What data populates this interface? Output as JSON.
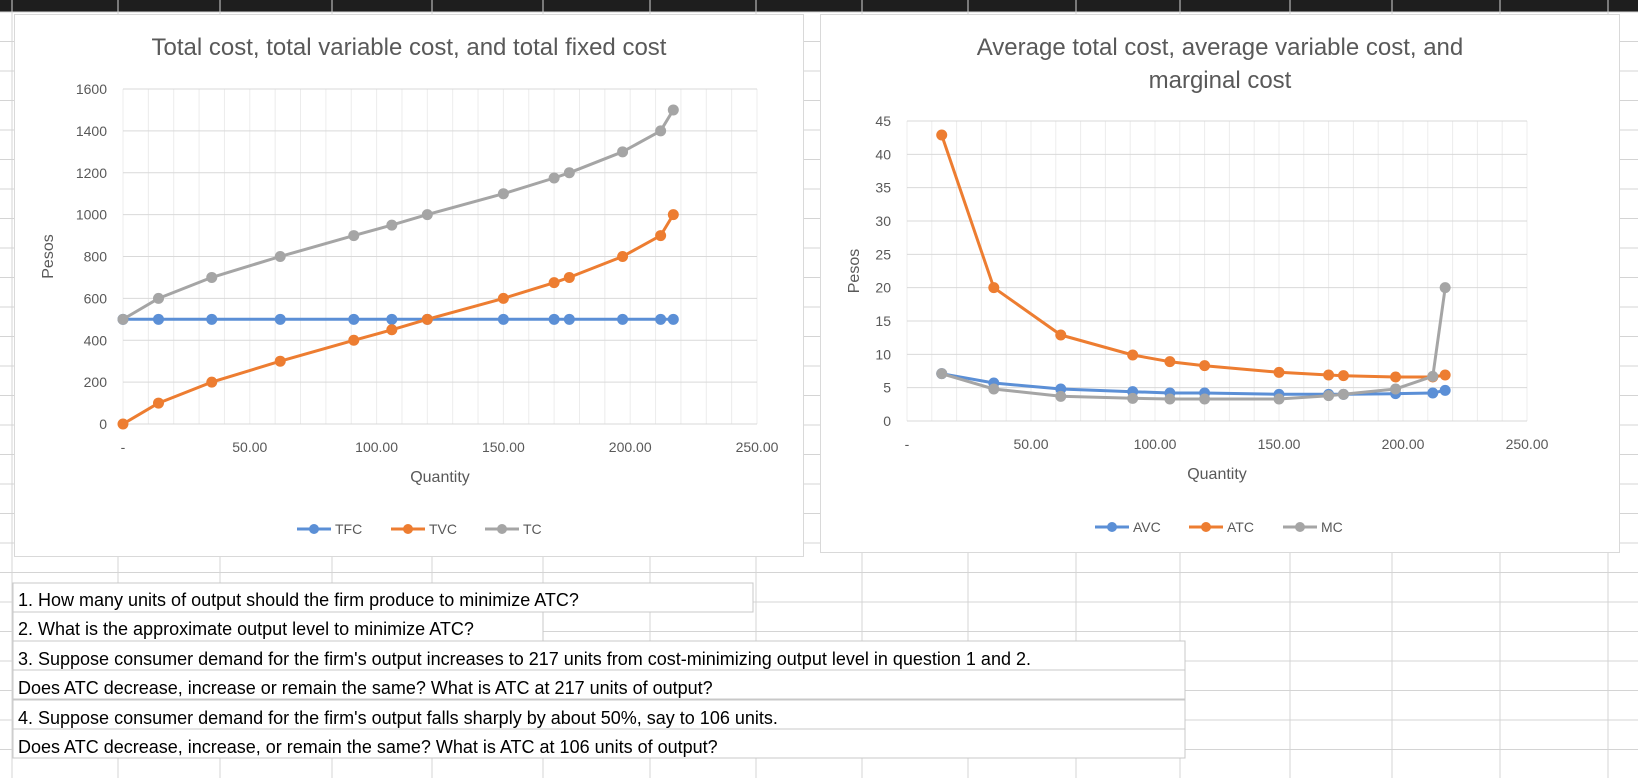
{
  "colors": {
    "sheet_grid": "#d4d4d4",
    "sheet_header": "#1e1e1e",
    "plot_grid": "#d9d9d9",
    "axis_text": "#595959",
    "series_blue": "#5b8fd6",
    "series_orange": "#ed7d31",
    "series_gray": "#a5a5a5"
  },
  "chart_data": [
    {
      "type": "line",
      "title": "Total cost, total variable cost, and total fixed cost",
      "xlabel": "Quantity",
      "ylabel": "Pesos",
      "xlim": [
        0,
        250
      ],
      "ylim": [
        0,
        1600
      ],
      "x_ticks": [
        "-",
        "50.00",
        "100.00",
        "150.00",
        "200.00",
        "250.00"
      ],
      "y_ticks": [
        "0",
        "200",
        "400",
        "600",
        "800",
        "1000",
        "1200",
        "1400",
        "1600"
      ],
      "grid": true,
      "legend": "bottom",
      "series": [
        {
          "name": "TFC",
          "color": "#5b8fd6",
          "points": [
            [
              0,
              500
            ],
            [
              14,
              500
            ],
            [
              35,
              500
            ],
            [
              62,
              500
            ],
            [
              91,
              500
            ],
            [
              106,
              500
            ],
            [
              120,
              500
            ],
            [
              150,
              500
            ],
            [
              170,
              500
            ],
            [
              176,
              500
            ],
            [
              197,
              500
            ],
            [
              212,
              500
            ],
            [
              217,
              500
            ]
          ]
        },
        {
          "name": "TVC",
          "color": "#ed7d31",
          "points": [
            [
              0,
              0
            ],
            [
              14,
              100
            ],
            [
              35,
              200
            ],
            [
              62,
              300
            ],
            [
              91,
              400
            ],
            [
              106,
              450
            ],
            [
              120,
              500
            ],
            [
              150,
              600
            ],
            [
              170,
              675
            ],
            [
              176,
              700
            ],
            [
              197,
              800
            ],
            [
              212,
              900
            ],
            [
              217,
              1000
            ]
          ]
        },
        {
          "name": "TC",
          "color": "#a5a5a5",
          "points": [
            [
              0,
              500
            ],
            [
              14,
              600
            ],
            [
              35,
              700
            ],
            [
              62,
              800
            ],
            [
              91,
              900
            ],
            [
              106,
              950
            ],
            [
              120,
              1000
            ],
            [
              150,
              1100
            ],
            [
              170,
              1175
            ],
            [
              176,
              1200
            ],
            [
              197,
              1300
            ],
            [
              212,
              1400
            ],
            [
              217,
              1500
            ]
          ]
        }
      ]
    },
    {
      "type": "line",
      "title": "Average total cost, average variable cost, and marginal cost",
      "xlabel": "Quantity",
      "ylabel": "Pesos",
      "xlim": [
        0,
        250
      ],
      "ylim": [
        0,
        45
      ],
      "x_ticks": [
        "-",
        "50.00",
        "100.00",
        "150.00",
        "200.00",
        "250.00"
      ],
      "y_ticks": [
        "0",
        "5",
        "10",
        "15",
        "20",
        "25",
        "30",
        "35",
        "40",
        "45"
      ],
      "grid": true,
      "legend": "bottom",
      "series": [
        {
          "name": "AVC",
          "color": "#5b8fd6",
          "points": [
            [
              14,
              7.1
            ],
            [
              35,
              5.7
            ],
            [
              62,
              4.8
            ],
            [
              91,
              4.4
            ],
            [
              106,
              4.2
            ],
            [
              120,
              4.2
            ],
            [
              150,
              4.0
            ],
            [
              170,
              4.0
            ],
            [
              176,
              4.0
            ],
            [
              197,
              4.1
            ],
            [
              212,
              4.2
            ],
            [
              217,
              4.6
            ]
          ]
        },
        {
          "name": "ATC",
          "color": "#ed7d31",
          "points": [
            [
              14,
              42.9
            ],
            [
              35,
              20.0
            ],
            [
              62,
              12.9
            ],
            [
              91,
              9.9
            ],
            [
              106,
              8.9
            ],
            [
              120,
              8.3
            ],
            [
              150,
              7.3
            ],
            [
              170,
              6.9
            ],
            [
              176,
              6.8
            ],
            [
              197,
              6.6
            ],
            [
              212,
              6.6
            ],
            [
              217,
              6.9
            ]
          ]
        },
        {
          "name": "MC",
          "color": "#a5a5a5",
          "points": [
            [
              14,
              7.1
            ],
            [
              35,
              4.8
            ],
            [
              62,
              3.7
            ],
            [
              91,
              3.4
            ],
            [
              106,
              3.3
            ],
            [
              120,
              3.3
            ],
            [
              150,
              3.3
            ],
            [
              170,
              3.8
            ],
            [
              176,
              4.0
            ],
            [
              197,
              4.8
            ],
            [
              212,
              6.7
            ],
            [
              217,
              20.0
            ]
          ]
        }
      ]
    }
  ],
  "questions": [
    "1.  How many units of output should the firm produce to minimize ATC?",
    "2.  What is the approximate output level to minimize ATC?",
    "3.  Suppose consumer demand for the firm's output increases to 217 units from cost-minimizing output level in question 1 and 2.",
    "Does  ATC decrease, increase or remain the same?  What is ATC at 217 units of output?",
    "4.  Suppose consumer demand for the firm's output falls sharply by about 50%, say to 106 units.",
    "Does ATC decrease, increase, or remain the same?  What is ATC at 106 units of output?"
  ]
}
